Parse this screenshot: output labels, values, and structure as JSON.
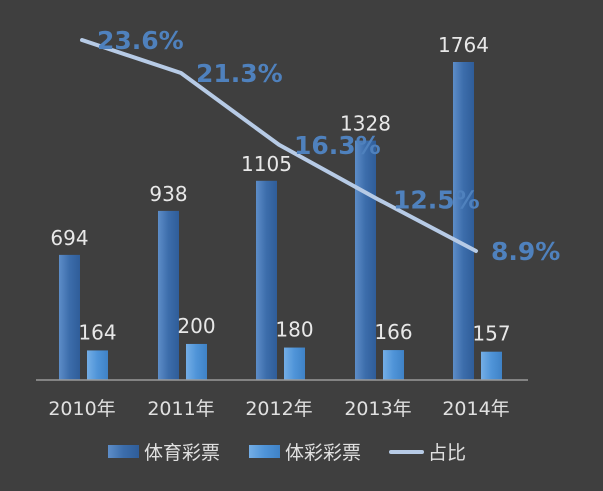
{
  "chart_data": {
    "type": "bar",
    "categories": [
      "2010年",
      "2011年",
      "2012年",
      "2013年",
      "2014年"
    ],
    "series": [
      {
        "name": "体育彩票",
        "kind": "bar",
        "values": [
          694,
          938,
          1105,
          1328,
          1764
        ],
        "color": "#4f81bd"
      },
      {
        "name": "体彩彩票",
        "kind": "bar",
        "values": [
          164,
          200,
          180,
          166,
          157
        ],
        "color": "#5b9bd5"
      },
      {
        "name": "占比",
        "kind": "line",
        "values": [
          23.6,
          21.3,
          16.3,
          12.5,
          8.9
        ],
        "color": "#b7cbe6"
      }
    ],
    "data_labels": {
      "s0": [
        "694",
        "938",
        "1105",
        "1328",
        "1764"
      ],
      "s1": [
        "164",
        "200",
        "180",
        "166",
        "157"
      ],
      "s2": [
        "23.6%",
        "21.3%",
        "16.3%",
        "12.5%",
        "8.9%"
      ]
    },
    "label_color": "#4f81bd",
    "ylim": [
      0,
      1764
    ],
    "ylim_secondary": [
      0,
      23.6
    ],
    "grid": false,
    "legend_position": "bottom"
  }
}
